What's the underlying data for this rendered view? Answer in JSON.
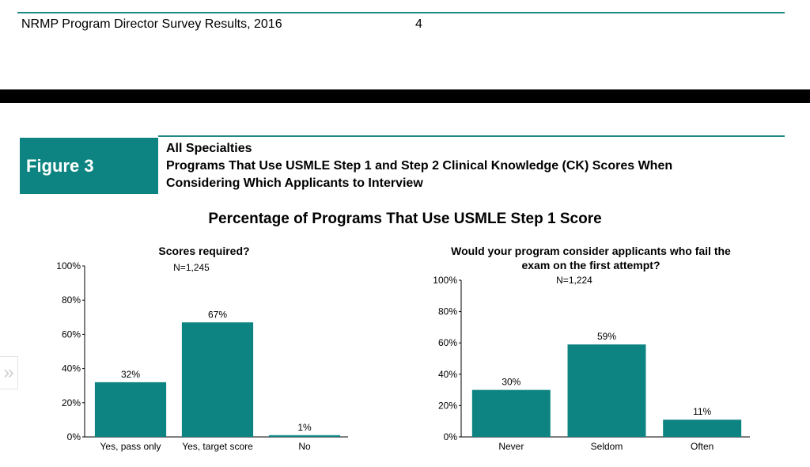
{
  "page": {
    "header": "NRMP Program Director Survey Results, 2016",
    "page_number": "4",
    "figure_label": "Figure 3",
    "figure_title_lines": [
      "All Specialties",
      "Programs That Use USMLE Step 1 and Step 2 Clinical Knowledge (CK) Scores When",
      "Considering Which Applicants to Interview"
    ],
    "main_heading": "Percentage of Programs That Use USMLE Step 1 Score",
    "side_tab_icon": "double-chevron-right-icon",
    "accent_color": "#0d8481"
  },
  "chart_data": [
    {
      "type": "bar",
      "title": "Scores required?",
      "n_label": "N=1,245",
      "categories": [
        "Yes, pass only",
        "Yes, target score",
        "No"
      ],
      "values": [
        32,
        67,
        1
      ],
      "value_labels": [
        "32%",
        "67%",
        "1%"
      ],
      "ylim": [
        0,
        100
      ],
      "yticks": [
        "0%",
        "20%",
        "40%",
        "60%",
        "80%",
        "100%"
      ],
      "grid": false,
      "color": "#0d8481"
    },
    {
      "type": "bar",
      "title_lines": [
        "Would your program consider applicants who fail the",
        "exam on the first attempt?"
      ],
      "n_label": "N=1,224",
      "categories": [
        "Never",
        "Seldom",
        "Often"
      ],
      "values": [
        30,
        59,
        11
      ],
      "value_labels": [
        "30%",
        "59%",
        "11%"
      ],
      "ylim": [
        0,
        100
      ],
      "yticks": [
        "0%",
        "20%",
        "40%",
        "60%",
        "80%",
        "100%"
      ],
      "grid": false,
      "color": "#0d8481"
    }
  ]
}
